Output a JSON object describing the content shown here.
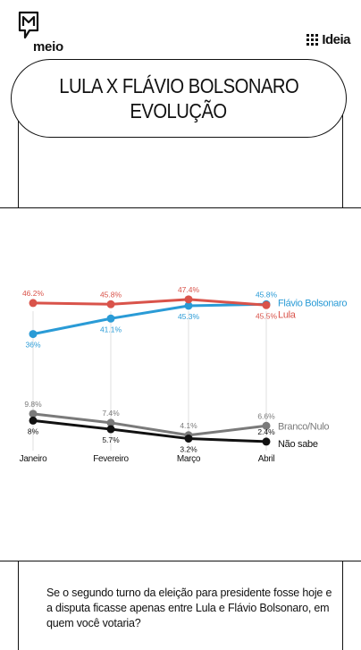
{
  "brand": {
    "left_logo": "meio",
    "right_logo": "Ideia"
  },
  "title": {
    "line1": "LULA X FLÁVIO BOLSONARO",
    "line2": "EVOLUÇÃO"
  },
  "question": "Se o segundo turno da eleição para presidente fosse hoje e a disputa ficasse apenas entre Lula e Flávio Bolsonaro, em quem você votaria?",
  "chart_data": {
    "type": "line",
    "categories": [
      "Janeiro",
      "Fevereiro",
      "Março",
      "Abril"
    ],
    "ylim": [
      0,
      50
    ],
    "grid": false,
    "legend": "right-end labels",
    "series": [
      {
        "name": "Flávio Bolsonaro",
        "color": "#2a9bd6",
        "values": [
          36,
          41.1,
          45.3,
          45.8
        ],
        "labels": [
          "36%",
          "41.1%",
          "45.3%",
          "45.8%"
        ],
        "label_pos": [
          "below",
          "below",
          "below",
          "above"
        ]
      },
      {
        "name": "Lula",
        "color": "#d9534a",
        "values": [
          46.2,
          45.8,
          47.4,
          45.5
        ],
        "labels": [
          "46.2%",
          "45.8%",
          "47.4%",
          "45.5%"
        ],
        "label_pos": [
          "above",
          "above",
          "above",
          "below"
        ]
      },
      {
        "name": "Branco/Nulo",
        "color": "#7a7a7a",
        "values": [
          9.8,
          7.4,
          4.1,
          6.6
        ],
        "labels": [
          "9.8%",
          "7.4%",
          "4.1%",
          "6.6%"
        ],
        "label_pos": [
          "above",
          "above",
          "above",
          "above"
        ]
      },
      {
        "name": "Não sabe",
        "color": "#111111",
        "values": [
          8,
          5.7,
          3.2,
          2.4
        ],
        "labels": [
          "8%",
          "5.7%",
          "3.2%",
          "2.4%"
        ],
        "label_pos": [
          "below",
          "below",
          "below",
          "above"
        ]
      }
    ]
  }
}
